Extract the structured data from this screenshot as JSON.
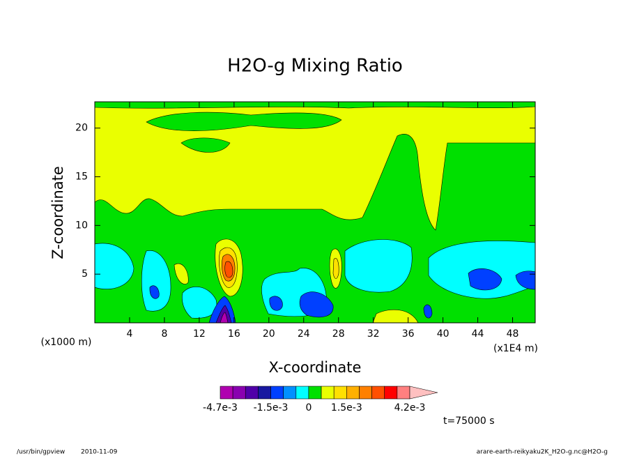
{
  "chart_data": {
    "type": "contour",
    "title": "H2O-g Mixing Ratio",
    "x_label": "X-coordinate",
    "y_label": "Z-coordinate",
    "x_unit": "(x1E4 m)",
    "y_unit": "(x1000 m)",
    "xlim": [
      0,
      50.6
    ],
    "ylim": [
      0,
      22.7
    ],
    "xticks": [
      4,
      8,
      12,
      16,
      20,
      24,
      28,
      32,
      36,
      40,
      44,
      48
    ],
    "yticks": [
      5,
      10,
      15,
      20
    ],
    "colorbar": {
      "levels": [
        -0.0047,
        -0.004,
        -0.003,
        -0.002,
        -0.0015,
        -0.001,
        -0.0005,
        0,
        0.0005,
        0.001,
        0.0015,
        0.002,
        0.0025,
        0.003,
        0.0035,
        0.0042
      ],
      "colors": [
        "#b000b0",
        "#8a00b0",
        "#5000a8",
        "#1818a0",
        "#0040ff",
        "#0090ff",
        "#00ffff",
        "#00e000",
        "#eaff00",
        "#ffe000",
        "#ffb000",
        "#ff8000",
        "#ff5000",
        "#ff0000",
        "#ff8080",
        "#ffc0c0"
      ],
      "ticks": [
        {
          "value": -0.0047,
          "label": "-4.7e-3"
        },
        {
          "value": -0.0015,
          "label": "-1.5e-3"
        },
        0,
        {
          "value": 0.0015,
          "label": "1.5e-3"
        },
        {
          "value": 0.0042,
          "label": "4.2e-3"
        }
      ]
    },
    "annotation": "t=75000 s"
  },
  "footer": {
    "program": "/usr/bin/gpview",
    "date": "2010-11-09",
    "source": "arare-earth-reikyaku2K_H2O-g.nc@H2O-g"
  }
}
